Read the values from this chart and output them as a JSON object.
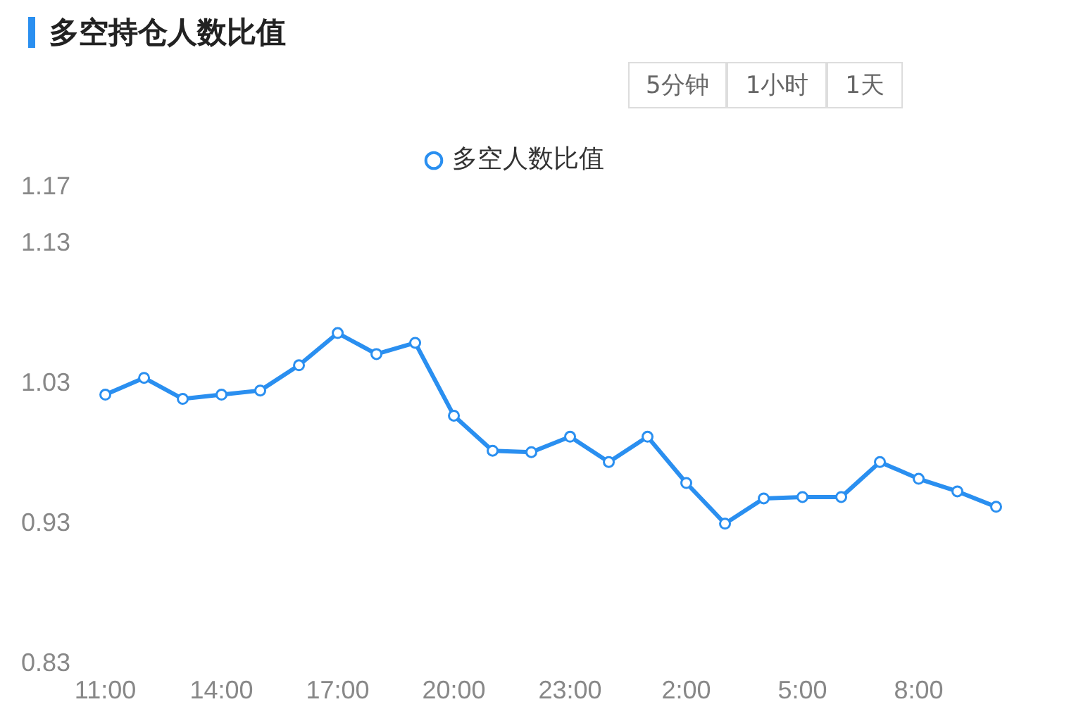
{
  "chart_data": {
    "type": "line",
    "title": "多空持仓人数比值",
    "annotations": [
      "5分钟",
      "1小时",
      "1天"
    ],
    "categories": [
      "11:00",
      null,
      null,
      "14:00",
      null,
      null,
      "17:00",
      null,
      null,
      "20:00",
      null,
      null,
      "23:00",
      null,
      null,
      "2:00",
      null,
      null,
      "5:00",
      null,
      null,
      "8:00",
      null,
      null
    ],
    "series": [
      {
        "name": "多空人数比值",
        "color": "#2a8ff0",
        "values": [
          1.022,
          1.034,
          1.019,
          1.022,
          1.025,
          1.043,
          1.066,
          1.051,
          1.059,
          1.007,
          0.982,
          0.981,
          0.992,
          0.974,
          0.992,
          0.959,
          0.93,
          0.948,
          0.949,
          0.949,
          0.974,
          0.962,
          0.953,
          0.942
        ]
      }
    ],
    "ylim": [
      0.83,
      1.17
    ],
    "yticks": [
      0.83,
      0.93,
      1.03,
      1.13,
      1.17
    ],
    "grid": false,
    "legend": "top",
    "marker": "circle",
    "line_style": "solid"
  }
}
